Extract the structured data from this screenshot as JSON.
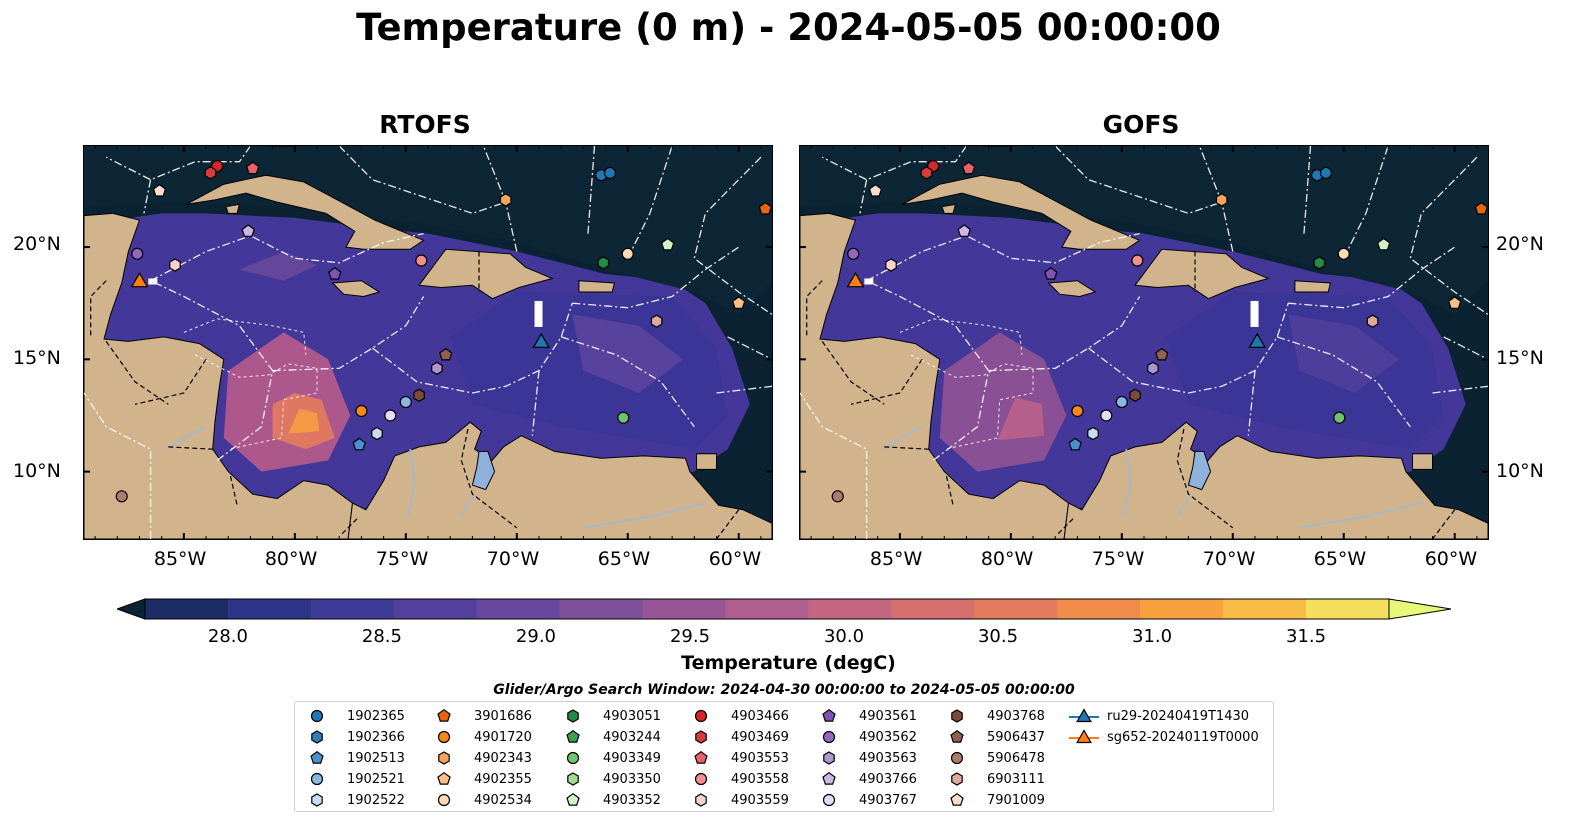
{
  "title": "Temperature (0 m) - 2024-05-05 00:00:00",
  "panels": [
    {
      "title": "RTOFS",
      "model": "rtofs"
    },
    {
      "title": "GOFS",
      "model": "gofs"
    }
  ],
  "axes": {
    "lon_ticks": [
      "85°W",
      "80°W",
      "75°W",
      "70°W",
      "65°W",
      "60°W"
    ],
    "lat_ticks": [
      "20°N",
      "15°N",
      "10°N"
    ],
    "lon_range": [
      -89.5,
      -58.5
    ],
    "lat_range": [
      7,
      24.5
    ]
  },
  "colorbar": {
    "label": "Temperature (degC)",
    "ticks": [
      "28.0",
      "28.5",
      "29.0",
      "29.5",
      "30.0",
      "30.5",
      "31.0",
      "31.5"
    ],
    "range": [
      28.0,
      31.5
    ],
    "colors": [
      "#0a2233",
      "#1c2d66",
      "#2e3488",
      "#3f3b98",
      "#52409c",
      "#68489c",
      "#7e4f99",
      "#975796",
      "#ae5f8f",
      "#c46681",
      "#d6706f",
      "#e47b5c",
      "#f18c4b",
      "#f8a23f",
      "#f9bd47",
      "#f3df5c",
      "#e7f77a"
    ]
  },
  "search_window": "Glider/Argo Search Window: 2024-04-30 00:00:00 to 2024-05-05 00:00:00",
  "legend": [
    {
      "label": "1902365",
      "marker": "circle",
      "color": "#1f77b4"
    },
    {
      "label": "1902366",
      "marker": "hexagon",
      "color": "#2f7db8"
    },
    {
      "label": "1902513",
      "marker": "pentagon",
      "color": "#4a8fd0"
    },
    {
      "label": "1902521",
      "marker": "circle",
      "color": "#8ab8e0"
    },
    {
      "label": "1902522",
      "marker": "hexagon",
      "color": "#c8ddef"
    },
    {
      "label": "3901686",
      "marker": "pentagon",
      "color": "#e6650d"
    },
    {
      "label": "4901720",
      "marker": "circle",
      "color": "#f5871c"
    },
    {
      "label": "4902343",
      "marker": "hexagon",
      "color": "#f9a35a"
    },
    {
      "label": "4902355",
      "marker": "pentagon",
      "color": "#fbbf86"
    },
    {
      "label": "4902534",
      "marker": "circle",
      "color": "#fdd9b4"
    },
    {
      "label": "4903051",
      "marker": "hexagon",
      "color": "#238b45"
    },
    {
      "label": "4903244",
      "marker": "pentagon",
      "color": "#3ba14f"
    },
    {
      "label": "4903349",
      "marker": "circle",
      "color": "#6fc36a"
    },
    {
      "label": "4903350",
      "marker": "hexagon",
      "color": "#a4dc97"
    },
    {
      "label": "4903352",
      "marker": "pentagon",
      "color": "#d4f2c8"
    },
    {
      "label": "4903466",
      "marker": "circle",
      "color": "#d62728"
    },
    {
      "label": "4903469",
      "marker": "hexagon",
      "color": "#d93a3a"
    },
    {
      "label": "4903553",
      "marker": "pentagon",
      "color": "#e86068"
    },
    {
      "label": "4903558",
      "marker": "circle",
      "color": "#f0908e"
    },
    {
      "label": "4903559",
      "marker": "hexagon",
      "color": "#fcd2cc"
    },
    {
      "label": "4903561",
      "marker": "pentagon",
      "color": "#7e53b4"
    },
    {
      "label": "4903562",
      "marker": "circle",
      "color": "#9467bd"
    },
    {
      "label": "4903563",
      "marker": "hexagon",
      "color": "#b093d2"
    },
    {
      "label": "4903766",
      "marker": "pentagon",
      "color": "#cdb7e6"
    },
    {
      "label": "4903767",
      "marker": "circle",
      "color": "#e8d9f6"
    },
    {
      "label": "4903768",
      "marker": "hexagon",
      "color": "#7c4a3a"
    },
    {
      "label": "5906437",
      "marker": "pentagon",
      "color": "#936050"
    },
    {
      "label": "5906478",
      "marker": "circle",
      "color": "#b07a6a"
    },
    {
      "label": "6903111",
      "marker": "hexagon",
      "color": "#e0a99a"
    },
    {
      "label": "7901009",
      "marker": "pentagon",
      "color": "#fadcd0"
    },
    {
      "label": "ru29-20240419T1430",
      "marker": "triangle-line",
      "color": "#1f77b4"
    },
    {
      "label": "sg652-20240119T0000",
      "marker": "triangle-line",
      "color": "#ff7f0e"
    }
  ],
  "floats": [
    {
      "id": "1902365",
      "lon": -66.2,
      "lat": 23.2
    },
    {
      "id": "1902365",
      "lon": -65.8,
      "lat": 23.3
    },
    {
      "id": "1902522",
      "lon": -76.3,
      "lat": 11.7
    },
    {
      "id": "1902513",
      "lon": -77.1,
      "lat": 11.2
    },
    {
      "id": "1902521",
      "lon": -75.0,
      "lat": 13.1
    },
    {
      "id": "4901720",
      "lon": -77.0,
      "lat": 12.7
    },
    {
      "id": "4903767",
      "lon": -75.7,
      "lat": 12.5
    },
    {
      "id": "4903768",
      "lon": -74.4,
      "lat": 13.4
    },
    {
      "id": "3901686",
      "lon": -58.8,
      "lat": 21.7
    },
    {
      "id": "4902343",
      "lon": -70.5,
      "lat": 22.1
    },
    {
      "id": "4902355",
      "lon": -60.0,
      "lat": 17.5
    },
    {
      "id": "4902534",
      "lon": -65.0,
      "lat": 19.7
    },
    {
      "id": "4903051",
      "lon": -66.1,
      "lat": 19.3
    },
    {
      "id": "4903352",
      "lon": -63.2,
      "lat": 20.1
    },
    {
      "id": "4903349",
      "lon": -65.2,
      "lat": 12.4
    },
    {
      "id": "4903466",
      "lon": -83.5,
      "lat": 23.6
    },
    {
      "id": "4903469",
      "lon": -83.8,
      "lat": 23.3
    },
    {
      "id": "4903553",
      "lon": -81.9,
      "lat": 23.5
    },
    {
      "id": "4903558",
      "lon": -74.3,
      "lat": 19.4
    },
    {
      "id": "4903559",
      "lon": -85.4,
      "lat": 19.2
    },
    {
      "id": "4903561",
      "lon": -78.2,
      "lat": 18.8
    },
    {
      "id": "4903562",
      "lon": -87.1,
      "lat": 19.7
    },
    {
      "id": "4903563",
      "lon": -73.6,
      "lat": 14.6
    },
    {
      "id": "4903766",
      "lon": -82.1,
      "lat": 20.7
    },
    {
      "id": "5906437",
      "lon": -73.2,
      "lat": 15.2
    },
    {
      "id": "5906478",
      "lon": -87.8,
      "lat": 8.9
    },
    {
      "id": "6903111",
      "lon": -63.7,
      "lat": 16.7
    },
    {
      "id": "7901009",
      "lon": -86.1,
      "lat": 22.5
    }
  ],
  "gliders": [
    {
      "id": "ru29-20240419T1430",
      "lon": -68.9,
      "lat": 15.8
    },
    {
      "id": "sg652-20240119T0000",
      "lon": -87.0,
      "lat": 18.5
    }
  ]
}
